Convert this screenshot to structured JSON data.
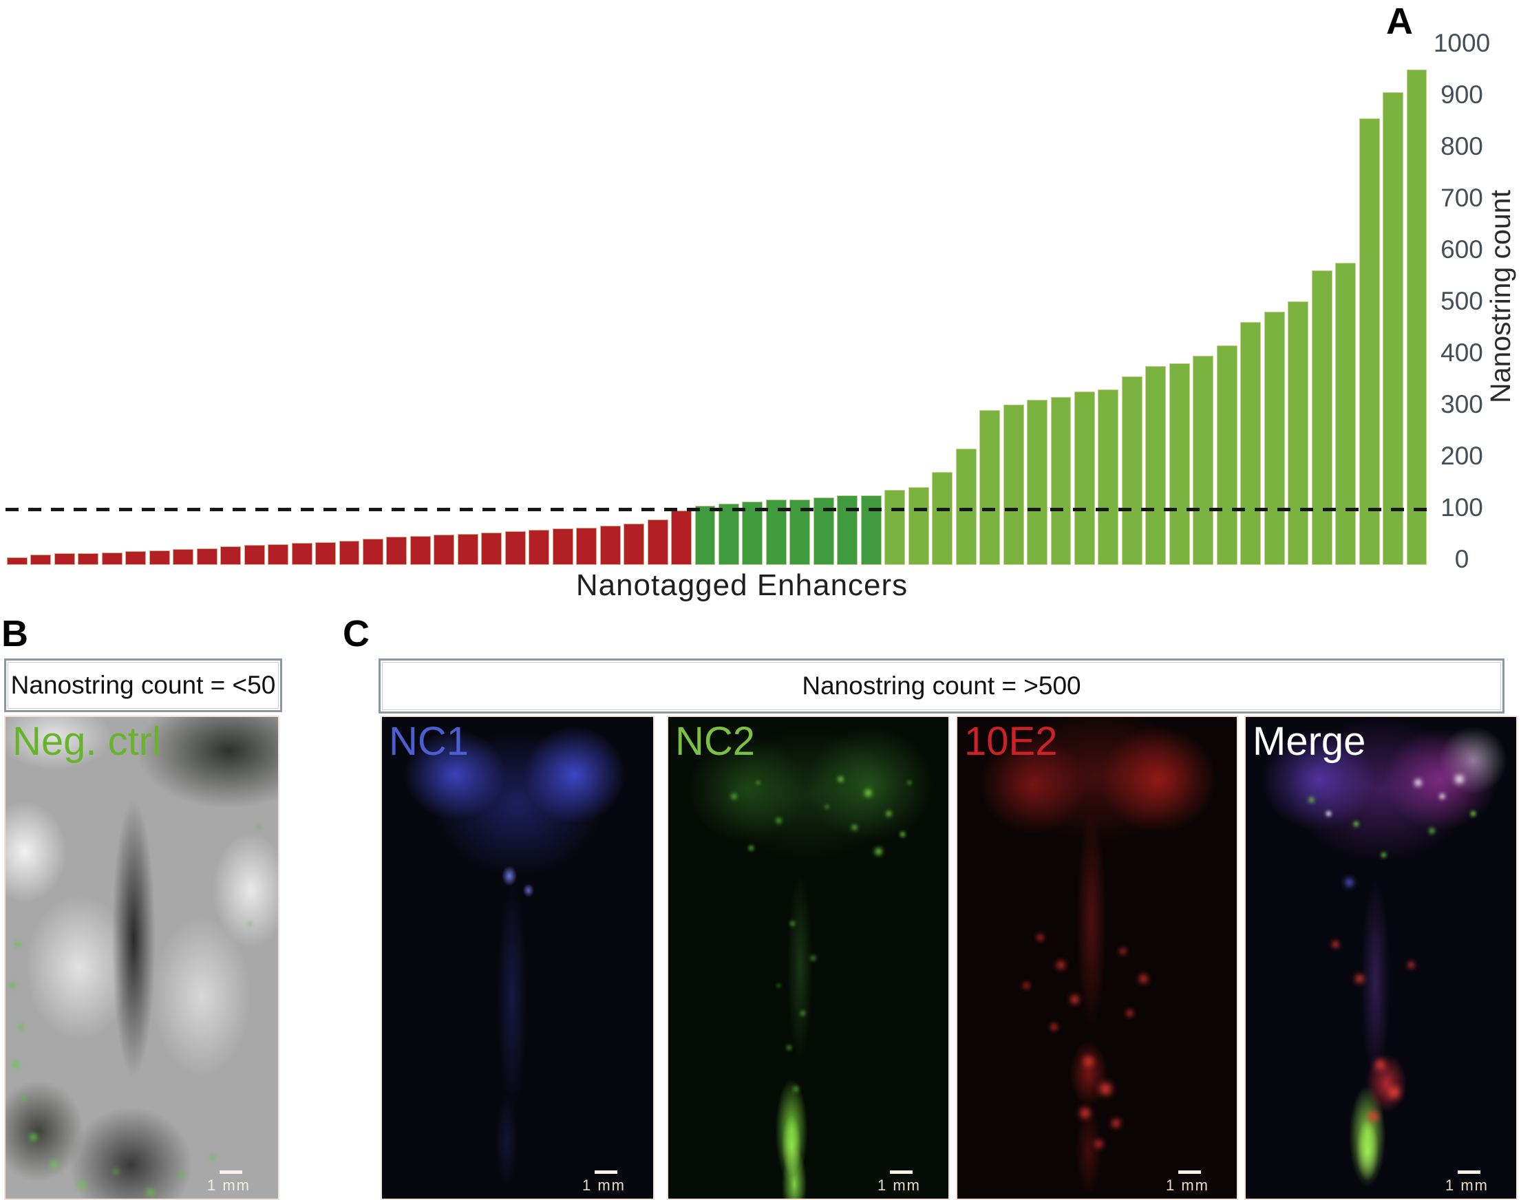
{
  "figure": {
    "panel_a_letter": "A",
    "panel_b_letter": "B",
    "panel_c_letter": "C"
  },
  "chart_data": {
    "type": "bar",
    "title": "",
    "xlabel": "Nanotagged Enhancers",
    "ylabel": "Nanostring count",
    "ylim": [
      0,
      1000
    ],
    "yticks": [
      0,
      100,
      200,
      300,
      400,
      500,
      600,
      700,
      800,
      900,
      1000
    ],
    "grid": false,
    "legend": "none",
    "threshold_line": {
      "value": 95,
      "style": "dashed",
      "color": "#161616"
    },
    "groups": [
      {
        "name": "below-threshold",
        "color": "#b22025",
        "count": 29
      },
      {
        "name": "just-above-threshold",
        "color": "#3f9b3e",
        "count": 8
      },
      {
        "name": "above-threshold",
        "color": "#7ab33f",
        "count": 23
      }
    ],
    "values": [
      4,
      10,
      12,
      12,
      14,
      16,
      18,
      20,
      22,
      26,
      28,
      30,
      32,
      34,
      36,
      40,
      44,
      46,
      48,
      50,
      52,
      55,
      58,
      60,
      62,
      66,
      70,
      78,
      95,
      104,
      108,
      112,
      116,
      116,
      120,
      124,
      124,
      135,
      140,
      170,
      215,
      290,
      300,
      310,
      315,
      325,
      330,
      355,
      375,
      380,
      395,
      415,
      460,
      480,
      500,
      560,
      575,
      855,
      905,
      950
    ]
  },
  "panel_b": {
    "header": "Nanostring count = <50",
    "image_label": "Neg. ctrl",
    "image_label_color": "#67b42c",
    "scale_bar_label": "1 mm"
  },
  "panel_c": {
    "header": "Nanostring count = >500",
    "images": [
      {
        "label": "NC1",
        "label_color": "#4b5fd0",
        "scale_bar_label": "1 mm"
      },
      {
        "label": "NC2",
        "label_color": "#7cc043",
        "scale_bar_label": "1 mm"
      },
      {
        "label": "10E2",
        "label_color": "#cc2127",
        "scale_bar_label": "1 mm"
      },
      {
        "label": "Merge",
        "label_color": "#ffffff",
        "scale_bar_label": "1 mm"
      }
    ]
  }
}
